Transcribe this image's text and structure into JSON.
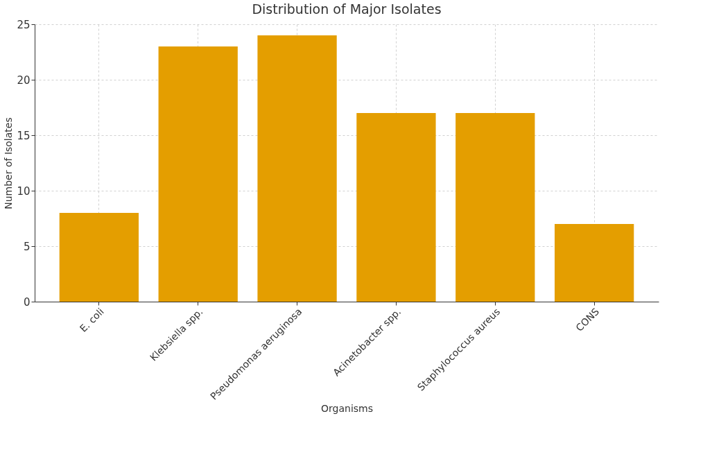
{
  "chart_data": {
    "type": "bar",
    "title": "Distribution of Major Isolates",
    "xlabel": "Organisms",
    "ylabel": "Number of Isolates",
    "categories": [
      "E. coli",
      "Klebsiella spp.",
      "Pseudomonas aeruginosa",
      "Acinetobacter spp.",
      "Staphylococcus aureus",
      "CONS"
    ],
    "values": [
      8,
      23,
      24,
      17,
      17,
      7
    ],
    "color": "#e49e00",
    "ylim": [
      0,
      25
    ],
    "yticks": [
      0,
      5,
      10,
      15,
      20,
      25
    ],
    "grid": true
  }
}
